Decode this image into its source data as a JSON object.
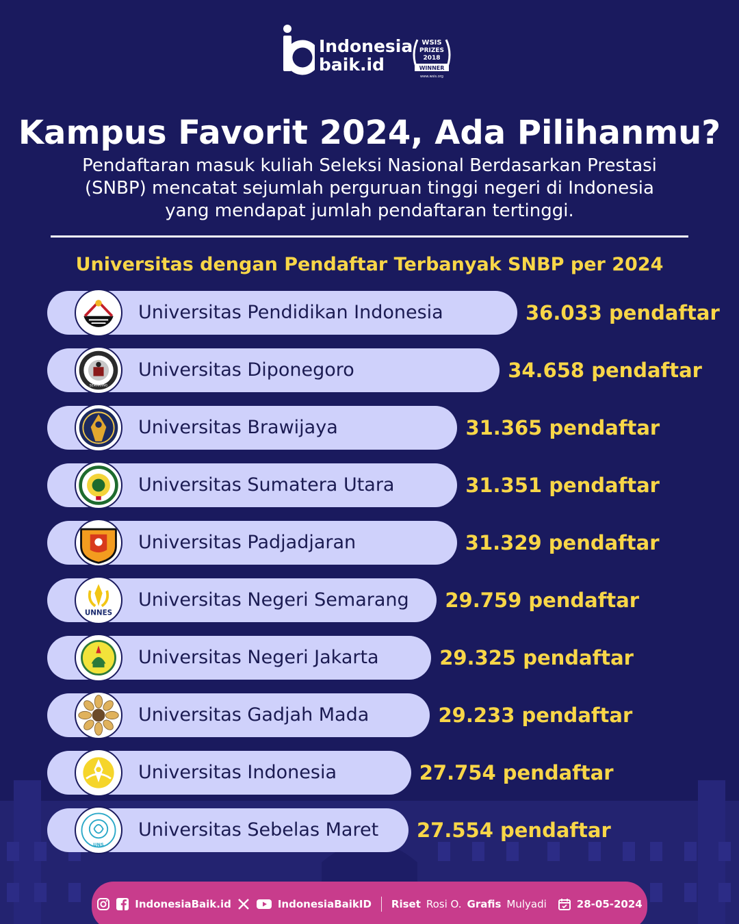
{
  "brand": {
    "line1": "Indonesia",
    "line2": "baik.id",
    "award_line1": "WSIS",
    "award_line2": "PRIZES",
    "award_line3": "2018",
    "award_line4": "WINNER",
    "award_line5": "www.wsis.org"
  },
  "title": "Kampus Favorit 2024, Ada Pilihanmu?",
  "subtitle": "Pendaftaran masuk kuliah Seleksi Nasional Berdasarkan Prestasi (SNBP) mencatat sejumlah perguruan tinggi negeri di Indonesia yang mendapat jumlah pendaftaran tertinggi.",
  "colors": {
    "background": "#1a1a5e",
    "bar": "#cfd1fb",
    "value": "#f8d648",
    "footer": "#c83c8c",
    "text_light": "#ffffff",
    "text_dark": "#1b1b52"
  },
  "chart_data": {
    "type": "bar",
    "orientation": "horizontal",
    "title": "Universitas dengan Pendaftar Terbanyak SNBP per 2024",
    "unit": "pendaftar",
    "categories": [
      "Universitas Pendidikan Indonesia",
      "Universitas Diponegoro",
      "Universitas Brawijaya",
      "Universitas Sumatera Utara",
      "Universitas Padjadjaran",
      "Universitas Negeri Semarang",
      "Universitas Negeri Jakarta",
      "Universitas Gadjah Mada",
      "Universitas Indonesia",
      "Universitas Sebelas Maret"
    ],
    "values": [
      36033,
      34658,
      31365,
      31351,
      31329,
      29759,
      29325,
      29233,
      27754,
      27554
    ],
    "value_labels": [
      "36.033 pendaftar",
      "34.658 pendaftar",
      "31.365 pendaftar",
      "31.351 pendaftar",
      "31.329 pendaftar",
      "29.759 pendaftar",
      "29.325 pendaftar",
      "29.233 pendaftar",
      "27.754 pendaftar",
      "27.554 pendaftar"
    ],
    "logos": [
      "upi-logo",
      "undip-logo",
      "ub-logo",
      "usu-logo",
      "unpad-logo",
      "unnes-logo",
      "unj-logo",
      "ugm-logo",
      "ui-logo",
      "uns-logo"
    ],
    "logo_texts": [
      "",
      "SEMARANG",
      "",
      "",
      "",
      "UNNES",
      "",
      "",
      "",
      "UNS"
    ]
  },
  "footer": {
    "social_handle": "IndonesiaBaik.id",
    "social_handle_2": "IndonesiaBaikID",
    "riset_label": "Riset",
    "riset_name": "Rosi O.",
    "grafis_label": "Grafis",
    "grafis_name": "Mulyadi",
    "date": "28-05-2024"
  }
}
